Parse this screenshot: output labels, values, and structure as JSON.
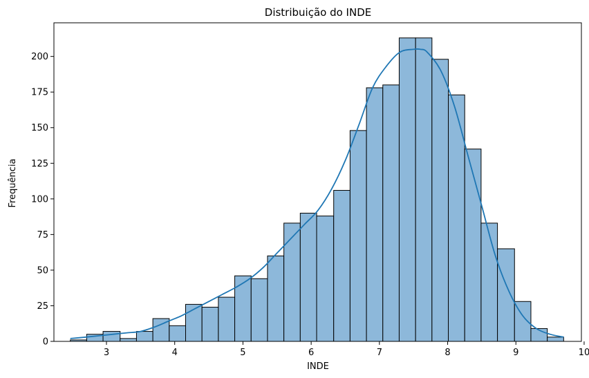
{
  "chart_data": {
    "type": "bar",
    "title": "Distribuição do INDE",
    "xlabel": "INDE",
    "ylabel": "Frequência",
    "xlim": [
      2.23,
      9.96
    ],
    "ylim": [
      0,
      223.6
    ],
    "grid": false,
    "bar_fill": "#8db8da",
    "bar_edge": "#000000",
    "kde_color": "#1f77b4",
    "x_ticks": [
      3,
      4,
      5,
      6,
      7,
      8,
      9,
      10
    ],
    "y_ticks": [
      0,
      25,
      50,
      75,
      100,
      125,
      150,
      175,
      200
    ],
    "bins": [
      {
        "x0": 2.47,
        "x1": 2.71,
        "value": 1
      },
      {
        "x0": 2.71,
        "x1": 2.95,
        "value": 5
      },
      {
        "x0": 2.95,
        "x1": 3.2,
        "value": 7
      },
      {
        "x0": 3.2,
        "x1": 3.44,
        "value": 2
      },
      {
        "x0": 3.44,
        "x1": 3.68,
        "value": 7
      },
      {
        "x0": 3.68,
        "x1": 3.92,
        "value": 16
      },
      {
        "x0": 3.92,
        "x1": 4.16,
        "value": 11
      },
      {
        "x0": 4.16,
        "x1": 4.4,
        "value": 26
      },
      {
        "x0": 4.4,
        "x1": 4.64,
        "value": 24
      },
      {
        "x0": 4.64,
        "x1": 4.88,
        "value": 31
      },
      {
        "x0": 4.88,
        "x1": 5.12,
        "value": 46
      },
      {
        "x0": 5.12,
        "x1": 5.36,
        "value": 44
      },
      {
        "x0": 5.36,
        "x1": 5.6,
        "value": 60
      },
      {
        "x0": 5.6,
        "x1": 5.84,
        "value": 83
      },
      {
        "x0": 5.84,
        "x1": 6.08,
        "value": 90
      },
      {
        "x0": 6.08,
        "x1": 6.33,
        "value": 88
      },
      {
        "x0": 6.33,
        "x1": 6.57,
        "value": 106
      },
      {
        "x0": 6.57,
        "x1": 6.81,
        "value": 148
      },
      {
        "x0": 6.81,
        "x1": 7.05,
        "value": 178
      },
      {
        "x0": 7.05,
        "x1": 7.29,
        "value": 180
      },
      {
        "x0": 7.29,
        "x1": 7.53,
        "value": 213
      },
      {
        "x0": 7.53,
        "x1": 7.77,
        "value": 213
      },
      {
        "x0": 7.77,
        "x1": 8.01,
        "value": 198
      },
      {
        "x0": 8.01,
        "x1": 8.25,
        "value": 173
      },
      {
        "x0": 8.25,
        "x1": 8.49,
        "value": 135
      },
      {
        "x0": 8.49,
        "x1": 8.73,
        "value": 83
      },
      {
        "x0": 8.73,
        "x1": 8.98,
        "value": 65
      },
      {
        "x0": 8.98,
        "x1": 9.22,
        "value": 28
      },
      {
        "x0": 9.22,
        "x1": 9.46,
        "value": 9
      },
      {
        "x0": 9.46,
        "x1": 9.7,
        "value": 3
      }
    ],
    "kde": {
      "x": [
        2.47,
        2.7,
        2.9,
        3.1,
        3.3,
        3.5,
        3.7,
        3.9,
        4.1,
        4.3,
        4.5,
        4.7,
        4.9,
        5.1,
        5.3,
        5.5,
        5.7,
        5.9,
        6.1,
        6.3,
        6.5,
        6.7,
        6.9,
        7.1,
        7.3,
        7.5,
        7.6,
        7.7,
        7.9,
        8.1,
        8.3,
        8.5,
        8.7,
        8.9,
        9.1,
        9.3,
        9.5,
        9.7
      ],
      "y": [
        2,
        3,
        4,
        5,
        6,
        7,
        10,
        14,
        18,
        23,
        28,
        33,
        38,
        44,
        52,
        62,
        72,
        82,
        92,
        107,
        127,
        152,
        178,
        193,
        203,
        205,
        205,
        203,
        190,
        165,
        130,
        95,
        60,
        35,
        18,
        9,
        5,
        3
      ]
    }
  }
}
